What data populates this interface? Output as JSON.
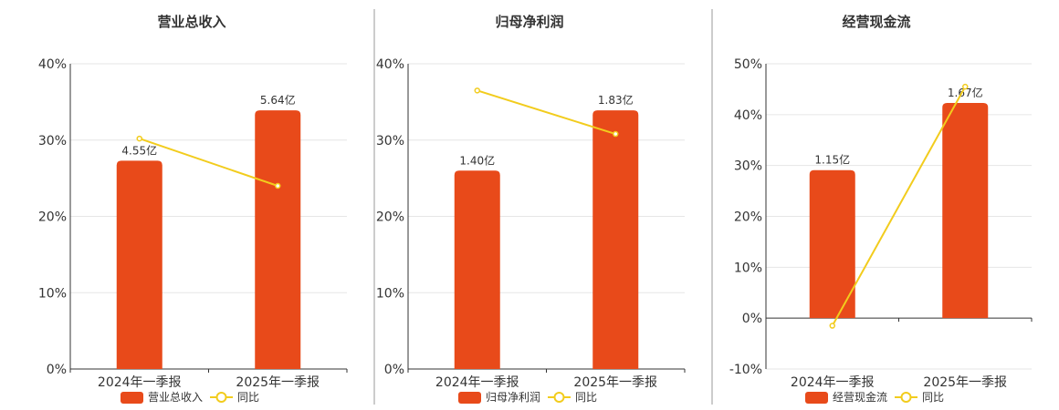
{
  "colors": {
    "bar": "#E84A1A",
    "line": "#F2CC1D",
    "dot_fill": "#ffffff"
  },
  "chart_data": [
    {
      "type": "bar",
      "title": "营业总收入",
      "categories": [
        "2024年一季报",
        "2025年一季报"
      ],
      "bar_series": {
        "name": "营业总收入",
        "values": [
          27.3,
          33.9
        ],
        "labels": [
          "4.55亿",
          "5.64亿"
        ]
      },
      "line_series": {
        "name": "同比",
        "values": [
          30.2,
          24.0
        ]
      },
      "ylim": [
        0,
        40
      ],
      "yticks": [
        0,
        10,
        20,
        30,
        40
      ],
      "ytick_labels": [
        "0%",
        "10%",
        "20%",
        "30%",
        "40%"
      ]
    },
    {
      "type": "bar",
      "title": "归母净利润",
      "categories": [
        "2024年一季报",
        "2025年一季报"
      ],
      "bar_series": {
        "name": "归母净利润",
        "values": [
          26.0,
          33.9
        ],
        "labels": [
          "1.40亿",
          "1.83亿"
        ]
      },
      "line_series": {
        "name": "同比",
        "values": [
          36.5,
          30.8
        ]
      },
      "ylim": [
        0,
        40
      ],
      "yticks": [
        0,
        10,
        20,
        30,
        40
      ],
      "ytick_labels": [
        "0%",
        "10%",
        "20%",
        "30%",
        "40%"
      ]
    },
    {
      "type": "bar",
      "title": "经营现金流",
      "categories": [
        "2024年一季报",
        "2025年一季报"
      ],
      "bar_series": {
        "name": "经营现金流",
        "values": [
          29.1,
          42.3
        ],
        "labels": [
          "1.15亿",
          "1.67亿"
        ]
      },
      "line_series": {
        "name": "同比",
        "values": [
          -1.5,
          45.5
        ]
      },
      "ylim": [
        -10,
        50
      ],
      "yticks": [
        -10,
        0,
        10,
        20,
        30,
        40,
        50
      ],
      "ytick_labels": [
        "-10%",
        "0%",
        "10%",
        "20%",
        "30%",
        "40%",
        "50%"
      ]
    }
  ]
}
